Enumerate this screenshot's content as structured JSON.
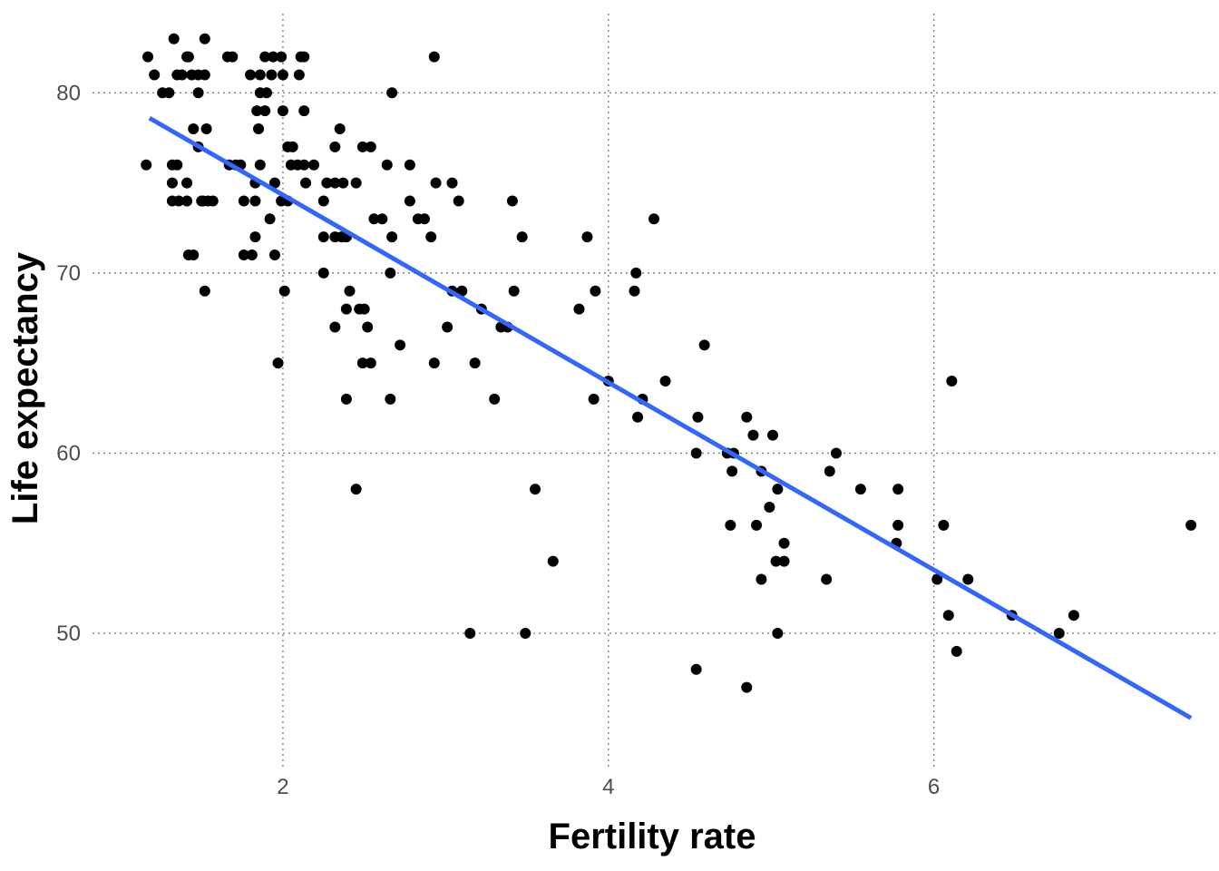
{
  "chart_data": {
    "type": "scatter",
    "title": "",
    "xlabel": "Fertility rate",
    "ylabel": "Life expectancy",
    "xlim": [
      0.83,
      7.73
    ],
    "ylim": [
      42.6,
      84.9
    ],
    "x_ticks": [
      2,
      4,
      6
    ],
    "y_ticks": [
      50,
      60,
      70,
      80
    ],
    "grid": true,
    "legend": "none",
    "point_color": "#000000",
    "fit_color": "#3366ff",
    "trend_line": {
      "type": "linear",
      "x": [
        1.18,
        7.58
      ],
      "y": [
        78.6,
        45.3
      ]
    },
    "points": [
      [
        1.17,
        82
      ],
      [
        1.21,
        81
      ],
      [
        1.16,
        76
      ],
      [
        1.26,
        80
      ],
      [
        1.3,
        80
      ],
      [
        1.33,
        83
      ],
      [
        1.35,
        81
      ],
      [
        1.38,
        81
      ],
      [
        1.42,
        82
      ],
      [
        1.44,
        81
      ],
      [
        1.48,
        81
      ],
      [
        1.52,
        83
      ],
      [
        1.52,
        81
      ],
      [
        1.41,
        82
      ],
      [
        1.45,
        78
      ],
      [
        1.53,
        78
      ],
      [
        1.48,
        80
      ],
      [
        1.48,
        77
      ],
      [
        1.32,
        76
      ],
      [
        1.35,
        76
      ],
      [
        1.32,
        75
      ],
      [
        1.41,
        75
      ],
      [
        1.32,
        74
      ],
      [
        1.36,
        74
      ],
      [
        1.41,
        74
      ],
      [
        1.5,
        74
      ],
      [
        1.54,
        74
      ],
      [
        1.57,
        74
      ],
      [
        1.42,
        71
      ],
      [
        1.45,
        71
      ],
      [
        1.52,
        69
      ],
      [
        1.51,
        74
      ],
      [
        1.67,
        76
      ],
      [
        1.71,
        76
      ],
      [
        1.74,
        76
      ],
      [
        1.66,
        82
      ],
      [
        1.69,
        82
      ],
      [
        1.8,
        81
      ],
      [
        1.86,
        81
      ],
      [
        1.93,
        81
      ],
      [
        1.89,
        82
      ],
      [
        1.94,
        82
      ],
      [
        1.99,
        82
      ],
      [
        2.0,
        81
      ],
      [
        1.86,
        80
      ],
      [
        1.9,
        80
      ],
      [
        1.84,
        79
      ],
      [
        1.89,
        79
      ],
      [
        1.85,
        78
      ],
      [
        2.0,
        79
      ],
      [
        2.11,
        82
      ],
      [
        2.13,
        82
      ],
      [
        2.1,
        81
      ],
      [
        2.13,
        79
      ],
      [
        1.76,
        74
      ],
      [
        1.83,
        74
      ],
      [
        1.83,
        75
      ],
      [
        1.86,
        76
      ],
      [
        1.95,
        75
      ],
      [
        1.99,
        74
      ],
      [
        2.03,
        74
      ],
      [
        2.05,
        76
      ],
      [
        2.09,
        76
      ],
      [
        2.13,
        76
      ],
      [
        2.03,
        77
      ],
      [
        2.06,
        77
      ],
      [
        2.14,
        75
      ],
      [
        1.76,
        71
      ],
      [
        1.81,
        71
      ],
      [
        1.83,
        72
      ],
      [
        1.95,
        71
      ],
      [
        1.92,
        73
      ],
      [
        1.97,
        65
      ],
      [
        2.01,
        69
      ],
      [
        2.19,
        76
      ],
      [
        2.25,
        74
      ],
      [
        2.27,
        75
      ],
      [
        2.25,
        72
      ],
      [
        2.25,
        70
      ],
      [
        2.32,
        75
      ],
      [
        2.37,
        75
      ],
      [
        2.32,
        77
      ],
      [
        2.35,
        78
      ],
      [
        2.32,
        72
      ],
      [
        2.36,
        72
      ],
      [
        2.39,
        72
      ],
      [
        2.32,
        67
      ],
      [
        2.39,
        68
      ],
      [
        2.41,
        69
      ],
      [
        2.39,
        63
      ],
      [
        2.45,
        75
      ],
      [
        2.47,
        68
      ],
      [
        2.5,
        68
      ],
      [
        2.49,
        65
      ],
      [
        2.54,
        65
      ],
      [
        2.52,
        67
      ],
      [
        2.45,
        58
      ],
      [
        2.49,
        77
      ],
      [
        2.54,
        77
      ],
      [
        2.56,
        73
      ],
      [
        2.61,
        73
      ],
      [
        2.64,
        76
      ],
      [
        2.67,
        80
      ],
      [
        2.67,
        72
      ],
      [
        2.66,
        70
      ],
      [
        2.66,
        63
      ],
      [
        2.72,
        66
      ],
      [
        2.78,
        76
      ],
      [
        2.78,
        74
      ],
      [
        2.83,
        73
      ],
      [
        2.87,
        73
      ],
      [
        2.91,
        72
      ],
      [
        2.94,
        75
      ],
      [
        2.93,
        82
      ],
      [
        2.93,
        65
      ],
      [
        3.01,
        67
      ],
      [
        3.04,
        69
      ],
      [
        3.04,
        75
      ],
      [
        3.08,
        74
      ],
      [
        3.1,
        69
      ],
      [
        3.18,
        65
      ],
      [
        3.22,
        68
      ],
      [
        3.15,
        50
      ],
      [
        3.3,
        63
      ],
      [
        3.34,
        67
      ],
      [
        3.38,
        67
      ],
      [
        3.41,
        74
      ],
      [
        3.42,
        69
      ],
      [
        3.47,
        72
      ],
      [
        3.49,
        50
      ],
      [
        3.55,
        58
      ],
      [
        3.66,
        54
      ],
      [
        3.82,
        68
      ],
      [
        3.87,
        72
      ],
      [
        3.92,
        69
      ],
      [
        3.91,
        63
      ],
      [
        4.0,
        64
      ],
      [
        4.17,
        70
      ],
      [
        4.16,
        69
      ],
      [
        4.18,
        62
      ],
      [
        4.21,
        63
      ],
      [
        4.28,
        73
      ],
      [
        4.35,
        64
      ],
      [
        4.55,
        62
      ],
      [
        4.54,
        60
      ],
      [
        4.54,
        48
      ],
      [
        4.59,
        66
      ],
      [
        4.73,
        60
      ],
      [
        4.77,
        60
      ],
      [
        4.76,
        59
      ],
      [
        4.75,
        56
      ],
      [
        4.85,
        62
      ],
      [
        4.89,
        61
      ],
      [
        4.85,
        47
      ],
      [
        4.91,
        56
      ],
      [
        4.94,
        59
      ],
      [
        4.94,
        53
      ],
      [
        4.99,
        57
      ],
      [
        5.01,
        61
      ],
      [
        5.04,
        58
      ],
      [
        5.03,
        54
      ],
      [
        5.04,
        50
      ],
      [
        5.08,
        55
      ],
      [
        5.08,
        54
      ],
      [
        5.34,
        53
      ],
      [
        5.36,
        59
      ],
      [
        5.4,
        60
      ],
      [
        5.55,
        58
      ],
      [
        5.77,
        55
      ],
      [
        5.78,
        58
      ],
      [
        5.78,
        56
      ],
      [
        6.02,
        53
      ],
      [
        6.06,
        56
      ],
      [
        6.09,
        51
      ],
      [
        6.11,
        64
      ],
      [
        6.14,
        49
      ],
      [
        6.21,
        53
      ],
      [
        6.48,
        51
      ],
      [
        6.77,
        50
      ],
      [
        6.86,
        51
      ],
      [
        7.58,
        56
      ]
    ]
  }
}
